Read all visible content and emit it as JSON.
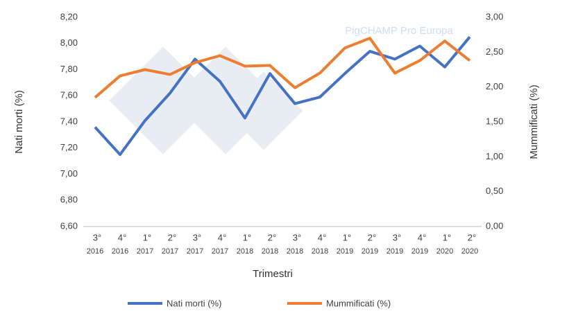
{
  "chart_data": {
    "type": "line",
    "watermark": "PigCHAMP Pro Europa",
    "x_label": "Trimestri",
    "y_label": "Nati morti (%)",
    "y2_label": "Mummificati (%)",
    "categories": [
      [
        "3°",
        "2016"
      ],
      [
        "4°",
        "2016"
      ],
      [
        "1°",
        "2017"
      ],
      [
        "2°",
        "2017"
      ],
      [
        "3°",
        "2017"
      ],
      [
        "4°",
        "2017"
      ],
      [
        "1°",
        "2018"
      ],
      [
        "2°",
        "2018"
      ],
      [
        "3°",
        "2018"
      ],
      [
        "4°",
        "2018"
      ],
      [
        "1°",
        "2019"
      ],
      [
        "2°",
        "2019"
      ],
      [
        "3°",
        "2019"
      ],
      [
        "4°",
        "2019"
      ],
      [
        "1°",
        "2020"
      ],
      [
        "2°",
        "2020"
      ]
    ],
    "series": [
      {
        "name": "Nati morti (%)",
        "color": "#4472c4",
        "values": [
          7.36,
          7.15,
          7.41,
          7.62,
          7.88,
          7.71,
          7.43,
          7.77,
          7.54,
          7.59,
          7.77,
          7.94,
          7.88,
          7.98,
          7.82,
          8.05
        ]
      },
      {
        "name": "Mummificati (%)",
        "color": "#ed7d31",
        "axis": "y2",
        "values": [
          1.85,
          2.16,
          2.25,
          2.18,
          2.35,
          2.45,
          2.3,
          2.31,
          1.99,
          2.2,
          2.56,
          2.7,
          2.2,
          2.38,
          2.66,
          2.38
        ]
      }
    ],
    "ylim": [
      6.6,
      8.2
    ],
    "yticks": [
      {
        "value": 6.6,
        "label": "6,60"
      },
      {
        "value": 6.8,
        "label": "6,80"
      },
      {
        "value": 7.0,
        "label": "7,00"
      },
      {
        "value": 7.2,
        "label": "7,20"
      },
      {
        "value": 7.4,
        "label": "7,40"
      },
      {
        "value": 7.6,
        "label": "7,60"
      },
      {
        "value": 7.8,
        "label": "7,80"
      },
      {
        "value": 8.0,
        "label": "8,00"
      },
      {
        "value": 8.2,
        "label": "8,20"
      }
    ],
    "y2lim": [
      0,
      3
    ],
    "y2ticks": [
      {
        "value": 0,
        "label": "0,00"
      },
      {
        "value": 0.5,
        "label": "0,50"
      },
      {
        "value": 1,
        "label": "1,00"
      },
      {
        "value": 1.5,
        "label": "1,50"
      },
      {
        "value": 2,
        "label": "2,00"
      },
      {
        "value": 2.5,
        "label": "2,50"
      },
      {
        "value": 3,
        "label": "3,00"
      }
    ],
    "grid": false,
    "legend": "bottom"
  }
}
